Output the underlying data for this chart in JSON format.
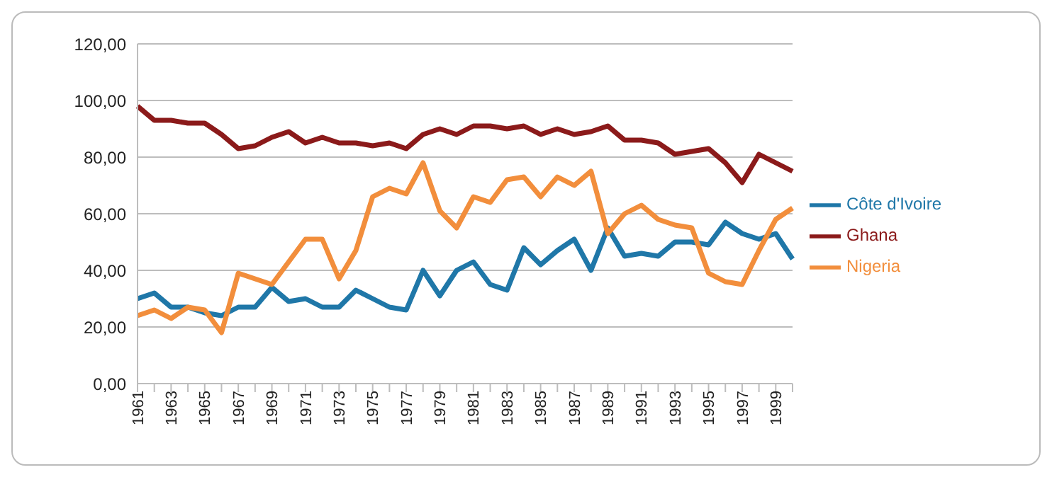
{
  "chart_data": {
    "type": "line",
    "categories": [
      "1961",
      null,
      "1963",
      null,
      "1965",
      null,
      "1967",
      null,
      "1969",
      null,
      "1971",
      null,
      "1973",
      null,
      "1975",
      null,
      "1977",
      null,
      "1979",
      null,
      "1981",
      null,
      "1983",
      null,
      "1985",
      null,
      "1987",
      null,
      "1989",
      null,
      "1991",
      null,
      "1993",
      null,
      "1995",
      null,
      "1997",
      null,
      "1999",
      null
    ],
    "series": [
      {
        "name": "Côte d'Ivoire",
        "color": "#1f77a8",
        "values": [
          30,
          32,
          27,
          27,
          25,
          24,
          27,
          27,
          34,
          29,
          30,
          27,
          27,
          33,
          30,
          27,
          26,
          40,
          31,
          40,
          43,
          35,
          33,
          48,
          42,
          47,
          51,
          40,
          55,
          45,
          46,
          45,
          50,
          50,
          49,
          57,
          53,
          51,
          53,
          44
        ]
      },
      {
        "name": "Ghana",
        "color": "#8b1a1a",
        "values": [
          98,
          93,
          93,
          92,
          92,
          88,
          83,
          84,
          87,
          89,
          85,
          87,
          85,
          85,
          84,
          85,
          83,
          88,
          90,
          88,
          91,
          91,
          90,
          91,
          88,
          90,
          88,
          89,
          91,
          86,
          86,
          85,
          81,
          82,
          83,
          78,
          71,
          81,
          78,
          75
        ]
      },
      {
        "name": "Nigeria",
        "color": "#f28e3c",
        "values": [
          24,
          26,
          23,
          27,
          26,
          18,
          39,
          37,
          35,
          43,
          51,
          51,
          37,
          47,
          66,
          69,
          67,
          78,
          61,
          55,
          66,
          64,
          72,
          73,
          66,
          73,
          70,
          75,
          53,
          60,
          63,
          58,
          56,
          55,
          39,
          36,
          35,
          47,
          58,
          62
        ]
      }
    ],
    "ylim": [
      0,
      120
    ],
    "yticks": [
      {
        "value": 0,
        "label": "0,00"
      },
      {
        "value": 20,
        "label": "20,00"
      },
      {
        "value": 40,
        "label": "40,00"
      },
      {
        "value": 60,
        "label": "60,00"
      },
      {
        "value": 80,
        "label": "80,00"
      },
      {
        "value": 100,
        "label": "100,00"
      },
      {
        "value": 120,
        "label": "120,00"
      }
    ],
    "grid": "y",
    "legend": "right",
    "marker": "none",
    "line_style": "solid"
  }
}
